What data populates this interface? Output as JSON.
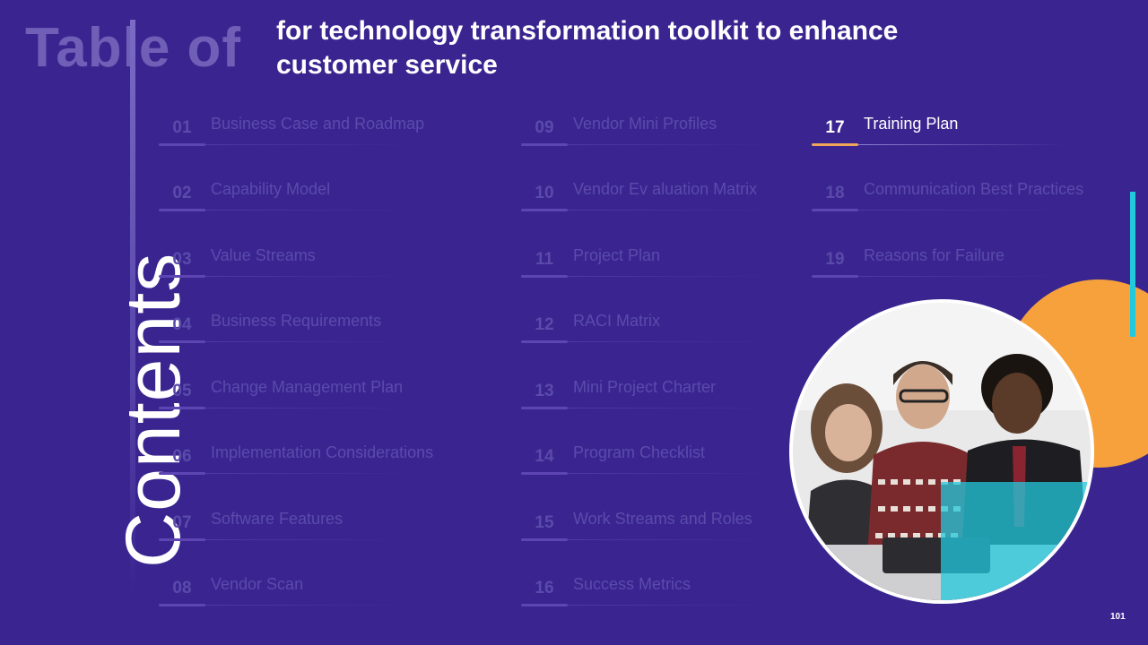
{
  "title_faded": "Table of",
  "title_vertical": "Contents",
  "subtitle": "for technology transformation toolkit to enhance customer service",
  "items": [
    {
      "num": "01",
      "label": "Business Case and Roadmap"
    },
    {
      "num": "02",
      "label": "Capability Model"
    },
    {
      "num": "03",
      "label": "Value Streams"
    },
    {
      "num": "04",
      "label": "Business Requirements"
    },
    {
      "num": "05",
      "label": "Change Management Plan"
    },
    {
      "num": "06",
      "label": "Implementation Considerations"
    },
    {
      "num": "07",
      "label": "Software Features"
    },
    {
      "num": "08",
      "label": "Vendor Scan"
    },
    {
      "num": "09",
      "label": "Vendor Mini Profiles"
    },
    {
      "num": "10",
      "label": "Vendor Ev aluation Matrix"
    },
    {
      "num": "11",
      "label": "Project Plan"
    },
    {
      "num": "12",
      "label": "RACI Matrix"
    },
    {
      "num": "13",
      "label": "Mini Project Charter"
    },
    {
      "num": "14",
      "label": "Program Checklist"
    },
    {
      "num": "15",
      "label": "Work Streams and Roles"
    },
    {
      "num": "16",
      "label": "Success Metrics"
    },
    {
      "num": "17",
      "label": "Training Plan"
    },
    {
      "num": "18",
      "label": "Communication Best Practices"
    },
    {
      "num": "19",
      "label": "Reasons for Failure"
    }
  ],
  "active_item": "17",
  "page_number": "101",
  "colors": {
    "background": "#3a2590",
    "accent_orange": "#f7a13c",
    "accent_teal": "#22c9dd",
    "inactive_text": "#5a4bab"
  }
}
